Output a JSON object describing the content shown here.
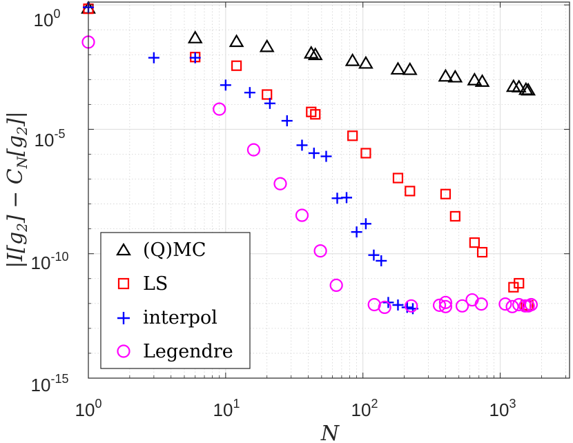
{
  "chart_data": {
    "type": "scatter",
    "x_scale": "log",
    "y_scale": "log",
    "xlim": [
      1,
      3200
    ],
    "ylim": [
      1e-15,
      1.3
    ],
    "grid": true,
    "minor_grid": true,
    "xlabel": "N",
    "ylabel": "|I[g2] − C_N[g2]|",
    "ylabel_parts": [
      "|I[g",
      "2",
      "] − C",
      "N",
      "[g",
      "2",
      "]|"
    ],
    "xticks": [
      {
        "value": 1,
        "base": "10",
        "exp": "0"
      },
      {
        "value": 10,
        "base": "10",
        "exp": "1"
      },
      {
        "value": 100,
        "base": "10",
        "exp": "2"
      },
      {
        "value": 1000,
        "base": "10",
        "exp": "3"
      }
    ],
    "yticks": [
      {
        "value": 1,
        "base": "10",
        "exp": "0"
      },
      {
        "value": 1e-05,
        "base": "10",
        "exp": "-5"
      },
      {
        "value": 1e-10,
        "base": "10",
        "exp": "-10"
      },
      {
        "value": 1e-15,
        "base": "10",
        "exp": "-15"
      }
    ],
    "legend_position": "bottom-left",
    "series": [
      {
        "name": "(Q)MC",
        "marker": "triangle",
        "color": "#000000",
        "points": [
          [
            1,
            0.7
          ],
          [
            6,
            0.045
          ],
          [
            12,
            0.032
          ],
          [
            20,
            0.02
          ],
          [
            42,
            0.011
          ],
          [
            45,
            0.0095
          ],
          [
            84,
            0.0055
          ],
          [
            105,
            0.0043
          ],
          [
            180,
            0.0025
          ],
          [
            220,
            0.0024
          ],
          [
            400,
            0.0013
          ],
          [
            470,
            0.0012
          ],
          [
            650,
            0.00092
          ],
          [
            740,
            0.0008
          ],
          [
            1250,
            0.0005
          ],
          [
            1370,
            0.00048
          ],
          [
            1540,
            0.00038
          ],
          [
            1600,
            0.00036
          ]
        ]
      },
      {
        "name": "LS",
        "marker": "square",
        "color": "#ff0000",
        "points": [
          [
            1,
            0.7
          ],
          [
            6,
            0.008
          ],
          [
            12,
            0.0036
          ],
          [
            20,
            0.00025
          ],
          [
            42,
            5e-05
          ],
          [
            45,
            4e-05
          ],
          [
            84,
            5.5e-06
          ],
          [
            105,
            1.1e-06
          ],
          [
            180,
            1.1e-07
          ],
          [
            220,
            3.3e-08
          ],
          [
            400,
            2.5e-08
          ],
          [
            470,
            3.2e-09
          ],
          [
            650,
            2.8e-10
          ],
          [
            740,
            1.15e-10
          ],
          [
            1250,
            4.5e-12
          ],
          [
            1370,
            6.5e-12
          ],
          [
            1540,
            8.5e-13
          ],
          [
            1600,
            8.5e-13
          ]
        ]
      },
      {
        "name": "interpol",
        "marker": "plus",
        "color": "#0000ff",
        "points": [
          [
            1,
            0.8
          ],
          [
            3,
            0.0075
          ],
          [
            6,
            0.0075
          ],
          [
            10,
            0.0006
          ],
          [
            15,
            0.0003
          ],
          [
            21,
            0.00011
          ],
          [
            28,
            2.2e-05
          ],
          [
            36,
            2.3e-06
          ],
          [
            44,
            1.1e-06
          ],
          [
            54,
            8.2e-07
          ],
          [
            65,
            1.7e-08
          ],
          [
            76,
            1.8e-08
          ],
          [
            90,
            7.5e-10
          ],
          [
            105,
            1.6e-09
          ],
          [
            120,
            8.8e-11
          ],
          [
            136,
            5.2e-11
          ],
          [
            153,
            1.1e-12
          ],
          [
            180,
            8.7e-13
          ],
          [
            210,
            7e-13
          ],
          [
            231,
            6.2e-13
          ]
        ]
      },
      {
        "name": "Legendre",
        "marker": "circle",
        "color": "#ff00ff",
        "points": [
          [
            1,
            0.032
          ],
          [
            9,
            6.5e-05
          ],
          [
            16,
            1.5e-06
          ],
          [
            25,
            6.5e-08
          ],
          [
            36,
            3.5e-09
          ],
          [
            49,
            1.3e-10
          ],
          [
            64,
            5.4e-12
          ],
          [
            121,
            9e-13
          ],
          [
            144,
            7e-13
          ],
          [
            225,
            8e-13
          ],
          [
            361,
            8.5e-13
          ],
          [
            400,
            1.1e-12
          ],
          [
            400,
            7.5e-13
          ],
          [
            529,
            8e-13
          ],
          [
            625,
            1.4e-12
          ],
          [
            729,
            9.5e-13
          ],
          [
            1089,
            9.5e-13
          ],
          [
            1225,
            7.5e-13
          ],
          [
            1369,
            9e-13
          ],
          [
            1521,
            8e-13
          ],
          [
            1681,
            9e-13
          ],
          [
            1600,
            8e-13
          ]
        ]
      }
    ]
  }
}
